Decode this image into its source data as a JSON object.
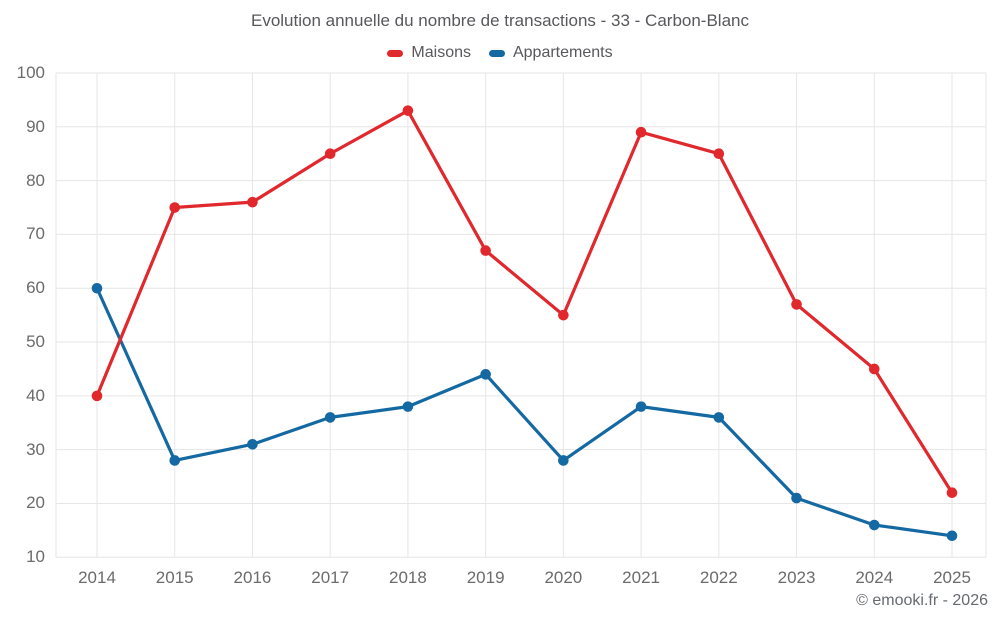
{
  "title": "Evolution annuelle du nombre de transactions - 33 - Carbon-Blanc",
  "footer": "© emooki.fr - 2026",
  "colors": {
    "maisons": "#e0282d",
    "appartements": "#1569a2",
    "gridline": "#e6e6e6",
    "tick_text": "#6b6b6b",
    "title_text": "#58585c"
  },
  "chart_data": {
    "type": "line",
    "title": "Evolution annuelle du nombre de transactions - 33 - Carbon-Blanc",
    "categories": [
      2014,
      2015,
      2016,
      2017,
      2018,
      2019,
      2020,
      2021,
      2022,
      2023,
      2024,
      2025
    ],
    "series": [
      {
        "name": "Maisons",
        "color": "#e0282d",
        "values": [
          40,
          75,
          76,
          85,
          93,
          67,
          55,
          89,
          85,
          57,
          45,
          22
        ]
      },
      {
        "name": "Appartements",
        "color": "#1569a2",
        "values": [
          60,
          28,
          31,
          36,
          38,
          44,
          28,
          38,
          36,
          21,
          16,
          14
        ]
      }
    ],
    "xlabel": "",
    "ylabel": "",
    "ylim": [
      10,
      100
    ],
    "ytick_step": 10,
    "grid": true,
    "legend_position": "top"
  }
}
